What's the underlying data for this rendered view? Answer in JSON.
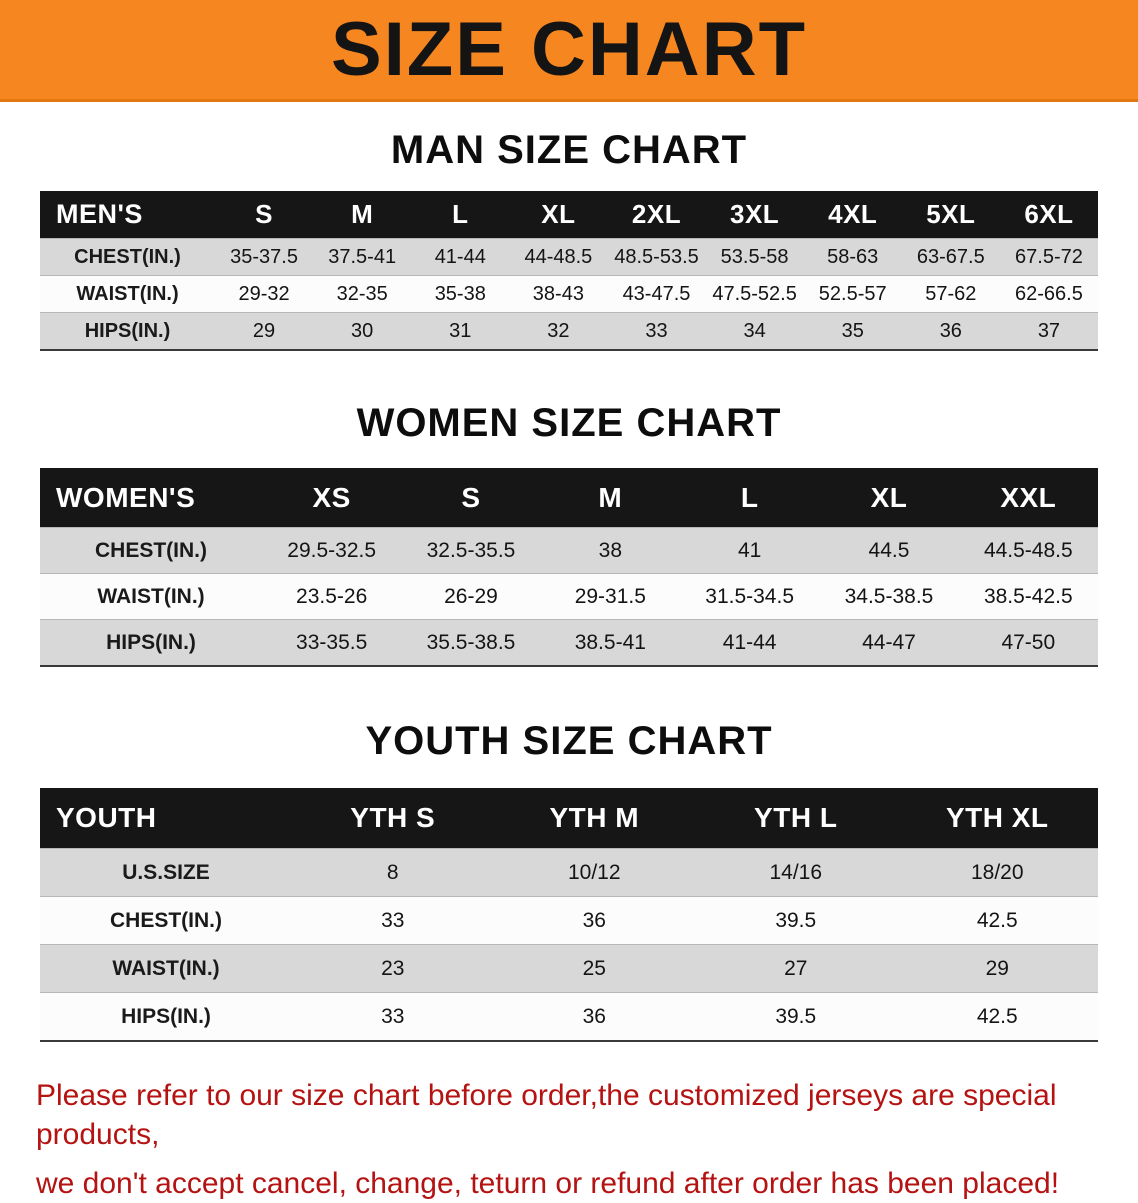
{
  "banner": {
    "title": "SIZE CHART",
    "bg_color": "#f6861f",
    "text_color": "#141414"
  },
  "sections": [
    {
      "heading": "MAN SIZE CHART",
      "table": {
        "label": "MEN'S",
        "columns": [
          "S",
          "M",
          "L",
          "XL",
          "2XL",
          "3XL",
          "4XL",
          "5XL",
          "6XL"
        ],
        "rows": [
          {
            "label": "CHEST(IN.)",
            "values": [
              "35-37.5",
              "37.5-41",
              "41-44",
              "44-48.5",
              "48.5-53.5",
              "53.5-58",
              "58-63",
              "63-67.5",
              "67.5-72"
            ]
          },
          {
            "label": "WAIST(IN.)",
            "values": [
              "29-32",
              "32-35",
              "35-38",
              "38-43",
              "43-47.5",
              "47.5-52.5",
              "52.5-57",
              "57-62",
              "62-66.5"
            ]
          },
          {
            "label": "HIPS(IN.)",
            "values": [
              "29",
              "30",
              "31",
              "32",
              "33",
              "34",
              "35",
              "36",
              "37"
            ]
          }
        ]
      }
    },
    {
      "heading": "WOMEN SIZE CHART",
      "table": {
        "label": "WOMEN'S",
        "columns": [
          "XS",
          "S",
          "M",
          "L",
          "XL",
          "XXL"
        ],
        "rows": [
          {
            "label": "CHEST(IN.)",
            "values": [
              "29.5-32.5",
              "32.5-35.5",
              "38",
              "41",
              "44.5",
              "44.5-48.5"
            ]
          },
          {
            "label": "WAIST(IN.)",
            "values": [
              "23.5-26",
              "26-29",
              "29-31.5",
              "31.5-34.5",
              "34.5-38.5",
              "38.5-42.5"
            ]
          },
          {
            "label": "HIPS(IN.)",
            "values": [
              "33-35.5",
              "35.5-38.5",
              "38.5-41",
              "41-44",
              "44-47",
              "47-50"
            ]
          }
        ]
      }
    },
    {
      "heading": "YOUTH SIZE CHART",
      "table": {
        "label": "YOUTH",
        "columns": [
          "YTH S",
          "YTH M",
          "YTH L",
          "YTH XL"
        ],
        "rows": [
          {
            "label": "U.S.SIZE",
            "values": [
              "8",
              "10/12",
              "14/16",
              "18/20"
            ]
          },
          {
            "label": "CHEST(IN.)",
            "values": [
              "33",
              "36",
              "39.5",
              "42.5"
            ]
          },
          {
            "label": "WAIST(IN.)",
            "values": [
              "23",
              "25",
              "27",
              "29"
            ]
          },
          {
            "label": "HIPS(IN.)",
            "values": [
              "33",
              "36",
              "39.5",
              "42.5"
            ]
          }
        ]
      }
    }
  ],
  "footer": {
    "text_color": "#b51212",
    "lines": [
      "Please refer to our size chart before order,the customized jerseys are special products,",
      "we don't accept cancel, change, teturn or refund after order has been placed!"
    ]
  }
}
